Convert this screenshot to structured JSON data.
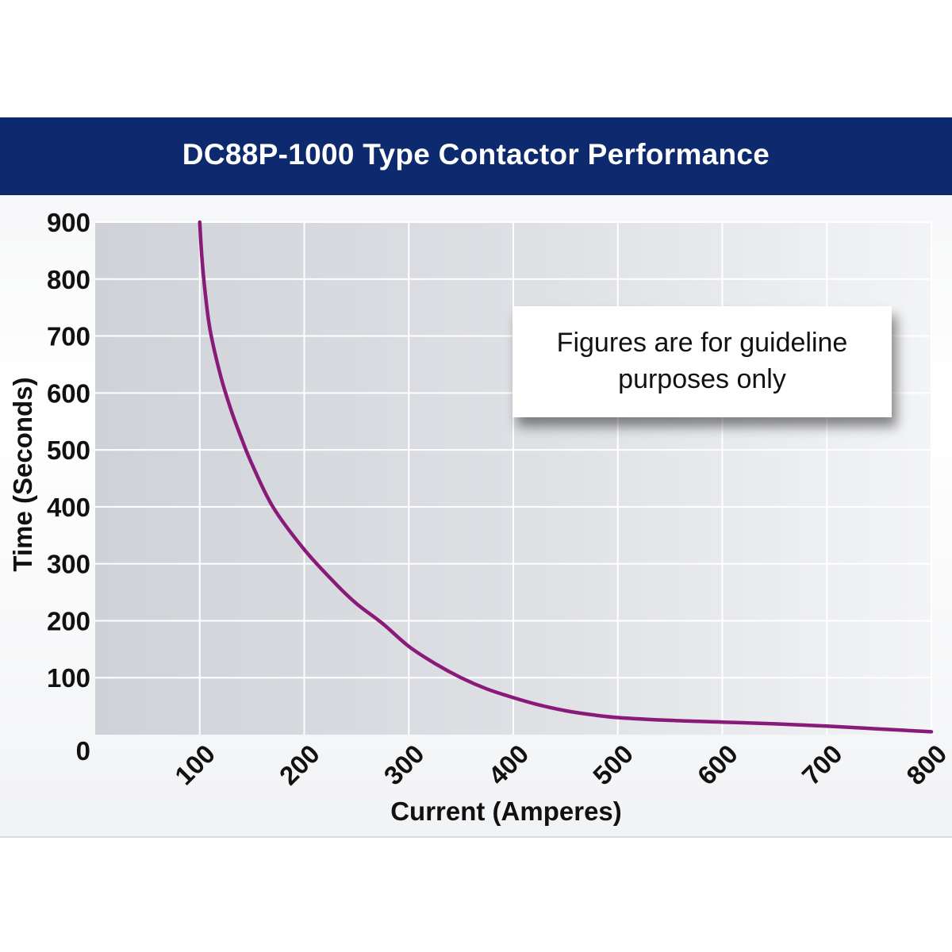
{
  "chart_data": {
    "type": "line",
    "title": "DC88P-1000 Type Contactor Performance",
    "xlabel": "Current (Amperes)",
    "ylabel": "Time (Seconds)",
    "xlim": [
      0,
      800
    ],
    "ylim": [
      0,
      900
    ],
    "x_ticks": [
      "100",
      "200",
      "300",
      "400",
      "500",
      "600",
      "700",
      "800"
    ],
    "y_ticks": [
      "0",
      "100",
      "200",
      "300",
      "400",
      "500",
      "600",
      "700",
      "800",
      "900"
    ],
    "grid": true,
    "annotation": "Figures are for guideline purposes only",
    "series": [
      {
        "color": "#8a1a7a",
        "x": [
          100,
          102,
          105,
          110,
          120,
          130,
          140,
          150,
          170,
          200,
          230,
          250,
          275,
          300,
          325,
          350,
          375,
          400,
          425,
          450,
          475,
          500,
          550,
          600,
          650,
          700,
          750,
          800
        ],
        "y": [
          900,
          840,
          780,
          710,
          630,
          570,
          520,
          475,
          400,
          325,
          265,
          230,
          195,
          155,
          125,
          100,
          80,
          65,
          52,
          42,
          35,
          30,
          25,
          22,
          19,
          15,
          10,
          5
        ]
      }
    ]
  },
  "colors": {
    "title_bar": "#0e2a6e",
    "curve": "#8a1a7a",
    "grid_line": "#ffffff"
  }
}
